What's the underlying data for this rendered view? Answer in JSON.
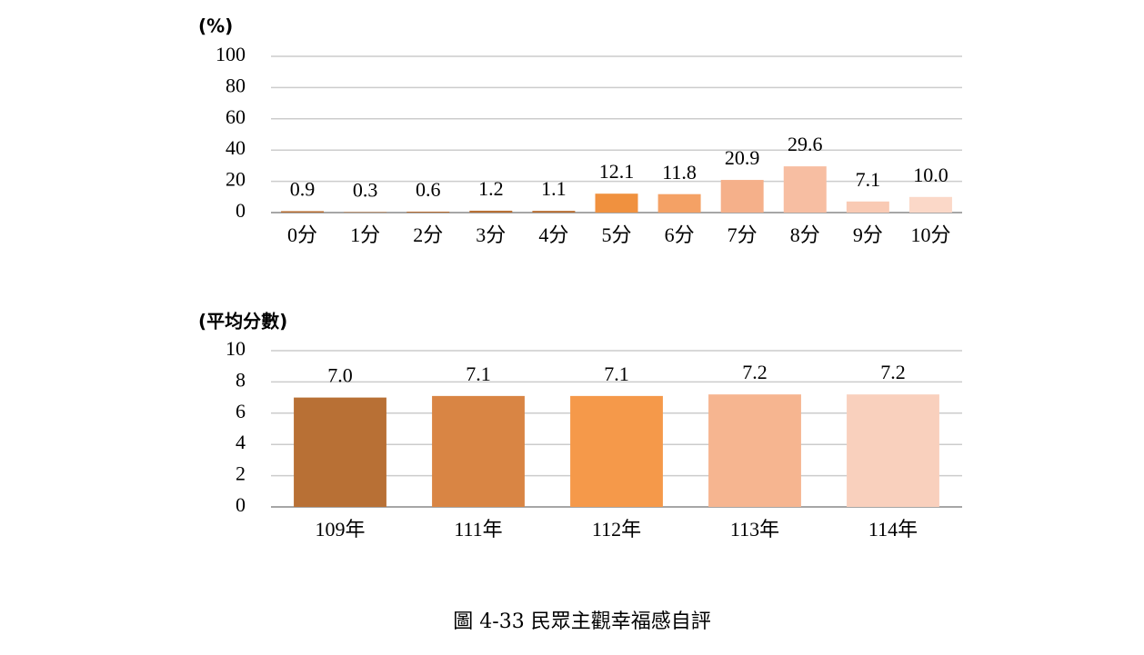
{
  "chart_data": [
    {
      "type": "bar",
      "y_label": "(%)",
      "categories": [
        "0分",
        "1分",
        "2分",
        "3分",
        "4分",
        "5分",
        "6分",
        "7分",
        "8分",
        "9分",
        "10分"
      ],
      "values": [
        0.9,
        0.3,
        0.6,
        1.2,
        1.1,
        12.1,
        11.8,
        20.9,
        29.6,
        7.1,
        10.0
      ],
      "value_labels": [
        "0.9",
        "0.3",
        "0.6",
        "1.2",
        "1.1",
        "12.1",
        "11.8",
        "20.9",
        "29.6",
        "7.1",
        "10.0"
      ],
      "colors": [
        "#b87035",
        "#b87035",
        "#b87035",
        "#b87035",
        "#b87035",
        "#f0913f",
        "#f4a165",
        "#f5b08a",
        "#f7bea2",
        "#f9cab4",
        "#fbd8c8"
      ],
      "ylim": [
        0,
        100
      ],
      "yticks": [
        0,
        20,
        40,
        60,
        80,
        100
      ],
      "grid": true
    },
    {
      "type": "bar",
      "y_label": "(平均分數)",
      "categories": [
        "109年",
        "111年",
        "112年",
        "113年",
        "114年"
      ],
      "values": [
        7.0,
        7.1,
        7.1,
        7.2,
        7.2
      ],
      "value_labels": [
        "7.0",
        "7.1",
        "7.1",
        "7.2",
        "7.2"
      ],
      "colors": [
        "#b87035",
        "#d98544",
        "#f5994a",
        "#f6b590",
        "#f9d0bd"
      ],
      "ylim": [
        0,
        10
      ],
      "yticks": [
        0,
        2,
        4,
        6,
        8,
        10
      ],
      "grid": true
    }
  ],
  "caption": "圖 4-33  民眾主觀幸福感自評"
}
